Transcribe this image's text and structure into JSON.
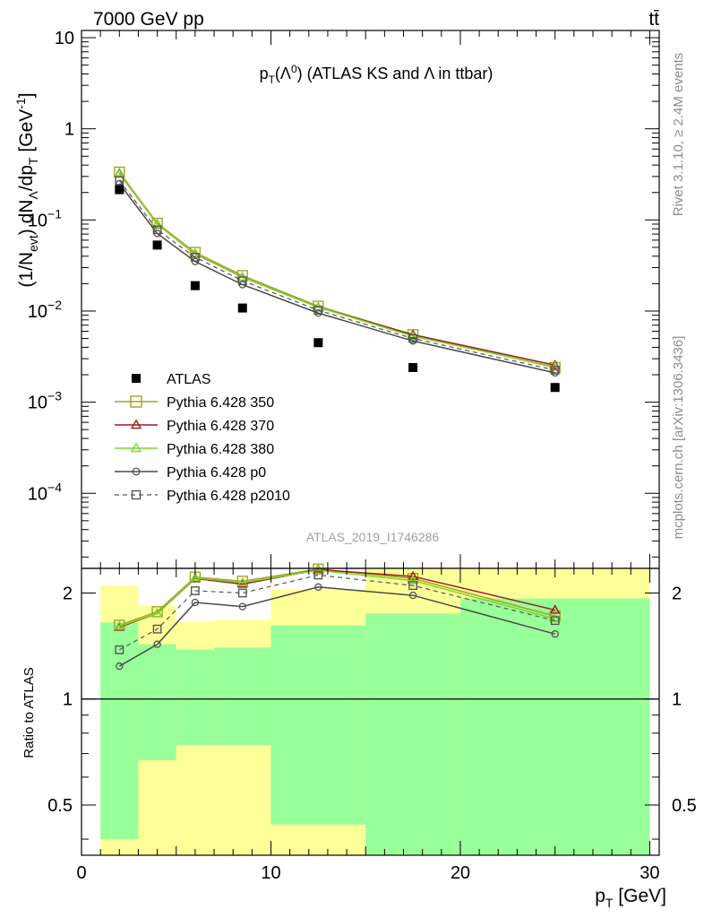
{
  "header": {
    "left": "7000 GeV pp",
    "right": "tt̄"
  },
  "side_labels": {
    "rivet": "Rivet 3.1.10, ≥ 2.4M events",
    "mcplots": "mcplots.cern.ch [arXiv:1306.3436]"
  },
  "chart_data": [
    {
      "type": "scatter",
      "panel": "main",
      "title": "pT(Λ0) (ATLAS KS and Λ in ttbar)",
      "ylabel": "(1/Nevt) dNΛ/dpT [GeV⁻¹]",
      "yscale": "log",
      "ylim": [
        1.5e-05,
        12
      ],
      "xlim": [
        0,
        30.5
      ],
      "x_ticks": [
        0,
        10,
        20,
        30
      ],
      "y_ticks": [
        {
          "value": 10,
          "label": "10"
        },
        {
          "value": 1,
          "label": "1"
        },
        {
          "value": 0.1,
          "base": "10",
          "exp": "−1"
        },
        {
          "value": 0.01,
          "base": "10",
          "exp": "−2"
        },
        {
          "value": 0.001,
          "base": "10",
          "exp": "−3"
        },
        {
          "value": 0.0001,
          "base": "10",
          "exp": "−4"
        }
      ],
      "watermark": "ATLAS_2019_I1746286",
      "legend_position": "bottom-left",
      "data": {
        "name": "ATLAS",
        "x": [
          2,
          4,
          6,
          8.5,
          12.5,
          17.5,
          25
        ],
        "y": [
          0.215,
          0.053,
          0.019,
          0.0108,
          0.0045,
          0.0024,
          0.00145
        ],
        "color": "#000000"
      },
      "series": [
        {
          "name": "Pythia 6.428 350",
          "marker": "square-open",
          "line": "solid",
          "color": "#a3a32a",
          "x": [
            2,
            4,
            6,
            8.5,
            12.5,
            17.5,
            25
          ],
          "y": [
            0.335,
            0.092,
            0.044,
            0.0245,
            0.0113,
            0.0055,
            0.0024
          ]
        },
        {
          "name": "Pythia 6.428 370",
          "marker": "triangle-open",
          "line": "solid",
          "color": "#9b1c1c",
          "x": [
            2,
            4,
            6,
            8.5,
            12.5,
            17.5,
            25
          ],
          "y": [
            0.325,
            0.09,
            0.0425,
            0.0235,
            0.011,
            0.0055,
            0.00255
          ]
        },
        {
          "name": "Pythia 6.428 380",
          "marker": "triangle-open",
          "line": "solid",
          "color": "#7fd62b",
          "x": [
            2,
            4,
            6,
            8.5,
            12.5,
            17.5,
            25
          ],
          "y": [
            0.33,
            0.09,
            0.043,
            0.0235,
            0.011,
            0.0053,
            0.00245
          ]
        },
        {
          "name": "Pythia 6.428 p0",
          "marker": "circle-open",
          "line": "solid",
          "color": "#4a4a4a",
          "x": [
            2,
            4,
            6,
            8.5,
            12.5,
            17.5,
            25
          ],
          "y": [
            0.25,
            0.071,
            0.035,
            0.0195,
            0.0095,
            0.0047,
            0.0021
          ]
        },
        {
          "name": "Pythia 6.428 p2010",
          "marker": "square-open",
          "line": "dashed",
          "color": "#555555",
          "x": [
            2,
            4,
            6,
            8.5,
            12.5,
            17.5,
            25
          ],
          "y": [
            0.27,
            0.078,
            0.039,
            0.0215,
            0.0102,
            0.005,
            0.00225
          ]
        }
      ]
    },
    {
      "type": "line",
      "panel": "ratio",
      "ylabel": "Ratio to ATLAS",
      "xlabel": "pT [GeV]",
      "yscale": "log",
      "ylim": [
        0.36,
        2.35
      ],
      "xlim": [
        0,
        30.5
      ],
      "x_ticks": [
        0,
        10,
        20,
        30
      ],
      "y_ticks": [
        {
          "value": 0.5,
          "label": "0.5"
        },
        {
          "value": 1,
          "label": "1"
        },
        {
          "value": 2,
          "label": "2"
        }
      ],
      "bands": [
        {
          "x0": 1,
          "x1": 3,
          "green_lo": 0.4,
          "green_hi": 1.65,
          "yellow_lo": 0.36,
          "yellow_hi": 2.1
        },
        {
          "x0": 3,
          "x1": 5,
          "green_lo": 0.67,
          "green_hi": 1.43,
          "yellow_lo": 0.36,
          "yellow_hi": 1.84
        },
        {
          "x0": 5,
          "x1": 7,
          "green_lo": 0.74,
          "green_hi": 1.38,
          "yellow_lo": 0.36,
          "yellow_hi": 1.66
        },
        {
          "x0": 7,
          "x1": 10,
          "green_lo": 0.74,
          "green_hi": 1.4,
          "yellow_lo": 0.36,
          "yellow_hi": 1.68
        },
        {
          "x0": 10,
          "x1": 15,
          "green_lo": 0.44,
          "green_hi": 1.62,
          "yellow_lo": 0.36,
          "yellow_hi": 2.05
        },
        {
          "x0": 15,
          "x1": 20,
          "green_lo": 0.36,
          "green_hi": 1.75,
          "yellow_lo": 0.36,
          "yellow_hi": 2.35
        },
        {
          "x0": 20,
          "x1": 30,
          "green_lo": 0.36,
          "green_hi": 1.93,
          "yellow_lo": 0.36,
          "yellow_hi": 2.35
        }
      ],
      "series": [
        {
          "name": "Pythia 6.428 350",
          "x": [
            2,
            4,
            6,
            8.5,
            12.5,
            17.5,
            25
          ],
          "y": [
            1.62,
            1.77,
            2.22,
            2.16,
            2.34,
            2.2,
            1.72
          ]
        },
        {
          "name": "Pythia 6.428 370",
          "x": [
            2,
            4,
            6,
            8.5,
            12.5,
            17.5,
            25
          ],
          "y": [
            1.6,
            1.75,
            2.2,
            2.12,
            2.33,
            2.23,
            1.79
          ]
        },
        {
          "name": "Pythia 6.428 380",
          "x": [
            2,
            4,
            6,
            8.5,
            12.5,
            17.5,
            25
          ],
          "y": [
            1.61,
            1.75,
            2.21,
            2.14,
            2.32,
            2.17,
            1.69
          ]
        },
        {
          "name": "Pythia 6.428 p0",
          "x": [
            2,
            4,
            6,
            8.5,
            12.5,
            17.5,
            25
          ],
          "y": [
            1.24,
            1.43,
            1.88,
            1.83,
            2.08,
            1.97,
            1.53
          ]
        },
        {
          "name": "Pythia 6.428 p2010",
          "x": [
            2,
            4,
            6,
            8.5,
            12.5,
            17.5,
            25
          ],
          "y": [
            1.38,
            1.58,
            2.03,
            2.0,
            2.25,
            2.1,
            1.67
          ]
        }
      ]
    }
  ]
}
